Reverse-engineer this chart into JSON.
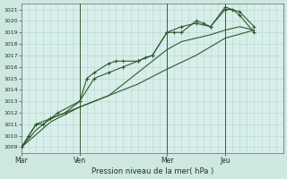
{
  "bg_color": "#cce8e0",
  "plot_bg": "#d8eeea",
  "grid_color": "#b0d8d0",
  "line_color": "#2d5a2d",
  "marker_color": "#2d5a2d",
  "xlabel": "Pression niveau de la mer( hPa )",
  "ylim": [
    1008.5,
    1021.5
  ],
  "yticks": [
    1009,
    1010,
    1011,
    1012,
    1013,
    1014,
    1015,
    1016,
    1017,
    1018,
    1019,
    1020,
    1021
  ],
  "xtick_labels": [
    "Mar",
    "Ven",
    "Mer",
    "Jeu"
  ],
  "xtick_positions": [
    0,
    48,
    120,
    168
  ],
  "xlim_hours": [
    0,
    216
  ],
  "vline_hours": [
    48,
    120,
    168
  ],
  "series": [
    {
      "hours": [
        0,
        6,
        12,
        18,
        24,
        30,
        48,
        54,
        60,
        72,
        78,
        84,
        96,
        102,
        108,
        120,
        126,
        132,
        144,
        150,
        156,
        168,
        174,
        180,
        192
      ],
      "y": [
        1009,
        1010,
        1011,
        1011,
        1011.5,
        1012,
        1013,
        1015,
        1015.5,
        1016.3,
        1016.5,
        1016.5,
        1016.5,
        1016.8,
        1017,
        1019,
        1019,
        1019,
        1020,
        1019.8,
        1019.5,
        1021,
        1021,
        1020.5,
        1019
      ],
      "marker": "+"
    },
    {
      "hours": [
        0,
        6,
        12,
        24,
        36,
        48,
        60,
        72,
        84,
        96,
        108,
        120,
        132,
        144,
        156,
        168,
        180,
        192
      ],
      "y": [
        1009,
        1010,
        1011,
        1011.5,
        1012,
        1013,
        1015,
        1015.5,
        1016,
        1016.5,
        1017,
        1019,
        1019.5,
        1019.8,
        1019.5,
        1021.2,
        1020.8,
        1019.5
      ],
      "marker": "+"
    },
    {
      "hours": [
        0,
        12,
        24,
        36,
        48,
        60,
        72,
        84,
        96,
        108,
        120,
        132,
        144,
        156,
        168,
        180,
        192
      ],
      "y": [
        1009,
        1010.5,
        1011.5,
        1012,
        1012.5,
        1013,
        1013.5,
        1014.5,
        1015.5,
        1016.5,
        1017.5,
        1018.2,
        1018.5,
        1018.8,
        1019.2,
        1019.5,
        1019.2
      ],
      "marker": null
    },
    {
      "hours": [
        0,
        24,
        48,
        72,
        96,
        120,
        144,
        168,
        192
      ],
      "y": [
        1009,
        1011.2,
        1012.5,
        1013.5,
        1014.5,
        1015.8,
        1017.0,
        1018.5,
        1019.2
      ],
      "marker": null
    }
  ],
  "figsize": [
    3.2,
    2.0
  ],
  "dpi": 100
}
